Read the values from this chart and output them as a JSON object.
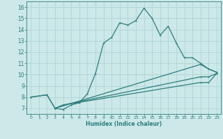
{
  "title": "",
  "xlabel": "Humidex (Indice chaleur)",
  "xlim": [
    -0.5,
    23.5
  ],
  "ylim": [
    6.5,
    16.5
  ],
  "xticks": [
    0,
    1,
    2,
    3,
    4,
    5,
    6,
    7,
    8,
    9,
    10,
    11,
    12,
    13,
    14,
    15,
    16,
    17,
    18,
    19,
    20,
    21,
    22,
    23
  ],
  "yticks": [
    7,
    8,
    9,
    10,
    11,
    12,
    13,
    14,
    15,
    16
  ],
  "background_color": "#cce8e8",
  "grid_color": "#aad0d0",
  "line_color": "#2d7d7d",
  "line1_x": [
    0,
    2,
    3,
    4,
    5,
    6,
    7,
    8,
    9,
    10,
    11,
    12,
    13,
    14,
    15,
    16,
    17,
    18,
    19,
    20,
    21,
    22,
    23
  ],
  "line1_y": [
    8.0,
    8.2,
    7.0,
    6.9,
    7.3,
    7.5,
    8.3,
    10.1,
    12.8,
    13.3,
    14.6,
    14.4,
    14.8,
    15.9,
    15.0,
    13.5,
    14.3,
    12.8,
    11.5,
    11.5,
    11.0,
    10.5,
    10.2
  ],
  "line2_x": [
    0,
    2,
    3,
    21,
    22,
    23
  ],
  "line2_y": [
    8.0,
    8.2,
    7.0,
    10.9,
    10.5,
    10.2
  ],
  "line3_x": [
    3,
    4,
    21,
    22,
    23
  ],
  "line3_y": [
    7.0,
    7.3,
    9.8,
    9.8,
    10.1
  ],
  "line4_x": [
    3,
    4,
    21,
    22,
    23
  ],
  "line4_y": [
    7.0,
    7.3,
    9.3,
    9.3,
    10.1
  ]
}
